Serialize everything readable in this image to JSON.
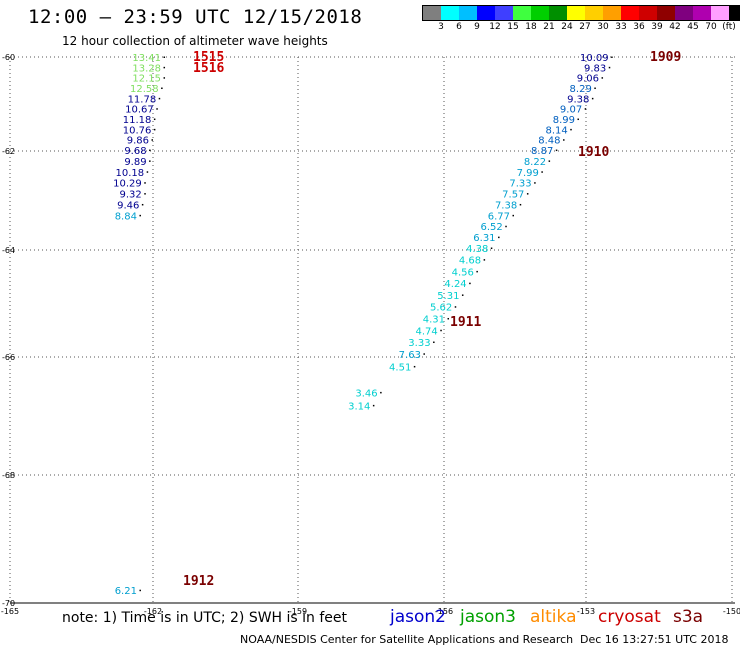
{
  "header": {
    "title": "12:00 — 23:59 UTC 12/15/2018",
    "subtitle": "12 hour collection of altimeter wave heights"
  },
  "colorbar": {
    "colors": [
      "#7f7f7f",
      "#00ffff",
      "#00bfff",
      "#0000ff",
      "#3f3fff",
      "#3fff3f",
      "#00cf00",
      "#008f00",
      "#ffff00",
      "#ffcf00",
      "#ff9f00",
      "#ff0000",
      "#cf0000",
      "#8f0000",
      "#7f007f",
      "#af00af",
      "#ff9fff",
      "#000000"
    ],
    "labels": [
      "3",
      "6",
      "9",
      "12",
      "15",
      "18",
      "21",
      "24",
      "27",
      "30",
      "33",
      "36",
      "39",
      "42",
      "45",
      "70",
      "(ft)"
    ]
  },
  "map": {
    "lat_ticks": [
      "-60",
      "-62",
      "-64",
      "-66",
      "-68",
      "-70"
    ],
    "lon_ticks": [
      "-165",
      "-162",
      "-159",
      "-156",
      "-153",
      "-150"
    ]
  },
  "passes": [
    {
      "label": "1515",
      "color": "#cc0000"
    },
    {
      "label": "1516",
      "color": "#cc0000"
    },
    {
      "label": "1909",
      "color": "#7a0000"
    },
    {
      "label": "1910",
      "color": "#7a0000"
    },
    {
      "label": "1911",
      "color": "#7a0000"
    },
    {
      "label": "1912",
      "color": "#7a0000"
    }
  ],
  "tracks": [
    {
      "name": "track-west",
      "points": [
        {
          "lon": -161.8,
          "lat": -60.0,
          "v": "13.41",
          "color": "#7fdf5f"
        },
        {
          "lon": -161.8,
          "lat": -60.22,
          "v": "13.28",
          "color": "#7fdf5f"
        },
        {
          "lon": -161.8,
          "lat": -60.44,
          "v": "12.15",
          "color": "#7fdf5f"
        },
        {
          "lon": -161.85,
          "lat": -60.66,
          "v": "12.58",
          "color": "#7fdf5f"
        },
        {
          "lon": -161.9,
          "lat": -60.88,
          "v": "11.78",
          "color": "#00008f"
        },
        {
          "lon": -161.95,
          "lat": -61.1,
          "v": "10.67",
          "color": "#00008f"
        },
        {
          "lon": -162.0,
          "lat": -61.32,
          "v": "11.18",
          "color": "#00008f"
        },
        {
          "lon": -162.0,
          "lat": -61.54,
          "v": "10.76",
          "color": "#00008f"
        },
        {
          "lon": -162.05,
          "lat": -61.76,
          "v": "9.86",
          "color": "#00008f"
        },
        {
          "lon": -162.1,
          "lat": -61.98,
          "v": "9.68",
          "color": "#00008f"
        },
        {
          "lon": -162.1,
          "lat": -62.2,
          "v": "9.89",
          "color": "#00008f"
        },
        {
          "lon": -162.15,
          "lat": -62.42,
          "v": "10.18",
          "color": "#00008f"
        },
        {
          "lon": -162.2,
          "lat": -62.64,
          "v": "10.29",
          "color": "#00008f"
        },
        {
          "lon": -162.2,
          "lat": -62.86,
          "v": "9.32",
          "color": "#00008f"
        },
        {
          "lon": -162.25,
          "lat": -63.08,
          "v": "9.46",
          "color": "#00008f"
        },
        {
          "lon": -162.3,
          "lat": -63.3,
          "v": "8.84",
          "color": "#009fcf"
        }
      ]
    },
    {
      "name": "track-east",
      "points": [
        {
          "lon": -152.5,
          "lat": -60.0,
          "v": "10.09",
          "color": "#00008f"
        },
        {
          "lon": -152.55,
          "lat": -60.22,
          "v": "9.83",
          "color": "#00008f"
        },
        {
          "lon": -152.7,
          "lat": -60.44,
          "v": "9.06",
          "color": "#00008f"
        },
        {
          "lon": -152.85,
          "lat": -60.66,
          "v": "8.29",
          "color": "#005fbf"
        },
        {
          "lon": -152.9,
          "lat": -60.88,
          "v": "9.38",
          "color": "#00008f"
        },
        {
          "lon": -153.05,
          "lat": -61.1,
          "v": "9.07",
          "color": "#005fbf"
        },
        {
          "lon": -153.2,
          "lat": -61.32,
          "v": "8.99",
          "color": "#005fbf"
        },
        {
          "lon": -153.35,
          "lat": -61.54,
          "v": "8.14",
          "color": "#005fbf"
        },
        {
          "lon": -153.5,
          "lat": -61.76,
          "v": "8.48",
          "color": "#005fbf"
        },
        {
          "lon": -153.65,
          "lat": -61.98,
          "v": "8.87",
          "color": "#005fbf"
        },
        {
          "lon": -153.8,
          "lat": -62.2,
          "v": "8.22",
          "color": "#009fcf"
        },
        {
          "lon": -153.95,
          "lat": -62.42,
          "v": "7.99",
          "color": "#009fcf"
        },
        {
          "lon": -154.1,
          "lat": -62.64,
          "v": "7.33",
          "color": "#009fcf"
        },
        {
          "lon": -154.25,
          "lat": -62.86,
          "v": "7.57",
          "color": "#009fcf"
        },
        {
          "lon": -154.4,
          "lat": -63.08,
          "v": "7.38",
          "color": "#009fcf"
        },
        {
          "lon": -154.55,
          "lat": -63.3,
          "v": "6.77",
          "color": "#009fcf"
        },
        {
          "lon": -154.7,
          "lat": -63.52,
          "v": "6.52",
          "color": "#009fcf"
        },
        {
          "lon": -154.85,
          "lat": -63.74,
          "v": "6.31",
          "color": "#009fcf"
        },
        {
          "lon": -155.0,
          "lat": -63.96,
          "v": "4.38",
          "color": "#00cfcf"
        },
        {
          "lon": -155.15,
          "lat": -64.18,
          "v": "4.68",
          "color": "#00cfcf"
        },
        {
          "lon": -155.3,
          "lat": -64.4,
          "v": "4.56",
          "color": "#00cfcf"
        },
        {
          "lon": -155.45,
          "lat": -64.62,
          "v": "4.24",
          "color": "#00cfcf"
        },
        {
          "lon": -155.6,
          "lat": -64.84,
          "v": "5.31",
          "color": "#00cfcf"
        },
        {
          "lon": -155.75,
          "lat": -65.06,
          "v": "5.62",
          "color": "#00cfcf"
        },
        {
          "lon": -155.9,
          "lat": -65.28,
          "v": "4.31",
          "color": "#00cfcf"
        },
        {
          "lon": -156.05,
          "lat": -65.5,
          "v": "4.74",
          "color": "#00cfcf"
        },
        {
          "lon": -156.2,
          "lat": -65.72,
          "v": "3.33",
          "color": "#00cfcf"
        },
        {
          "lon": -156.4,
          "lat": -65.94,
          "v": "7.63",
          "color": "#009fcf"
        },
        {
          "lon": -156.6,
          "lat": -66.16,
          "v": "4.51",
          "color": "#00cfcf"
        },
        {
          "lon": -157.3,
          "lat": -66.6,
          "v": "3.46",
          "color": "#00cfcf"
        },
        {
          "lon": -157.45,
          "lat": -66.82,
          "v": "3.14",
          "color": "#00cfcf"
        }
      ]
    },
    {
      "name": "track-south",
      "points": [
        {
          "lon": -162.3,
          "lat": -69.8,
          "v": "6.21",
          "color": "#009fcf"
        }
      ]
    }
  ],
  "footer": {
    "note": "note: 1) Time is in UTC; 2) SWH is in feet",
    "legend": [
      {
        "name": "jason2",
        "color": "#0000cc"
      },
      {
        "name": "jason3",
        "color": "#00a000"
      },
      {
        "name": "altika",
        "color": "#ff8c00"
      },
      {
        "name": "cryosat",
        "color": "#cc0000"
      },
      {
        "name": "s3a",
        "color": "#7a0000"
      }
    ],
    "credit": "NOAA/NESDIS Center for Satellite Applications and Research",
    "timestamp": "Dec 16 13:27:51 UTC 2018"
  }
}
